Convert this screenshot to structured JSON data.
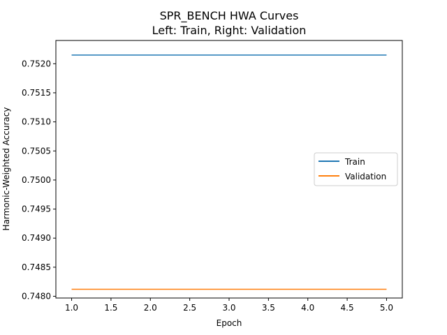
{
  "chart_data": {
    "type": "line",
    "title": "SPR_BENCH HWA Curves",
    "subtitle": "Left: Train, Right: Validation",
    "xlabel": "Epoch",
    "ylabel": "Harmonic-Weighted Accuracy",
    "xlim": [
      0.8,
      5.2
    ],
    "ylim": [
      0.74797,
      0.7524
    ],
    "x_ticks": [
      "1.0",
      "1.5",
      "2.0",
      "2.5",
      "3.0",
      "3.5",
      "4.0",
      "4.5",
      "5.0"
    ],
    "y_ticks": [
      "0.7480",
      "0.7485",
      "0.7490",
      "0.7495",
      "0.7500",
      "0.7505",
      "0.7510",
      "0.7515",
      "0.7520"
    ],
    "grid": false,
    "legend_position": "center-right",
    "x": [
      1,
      2,
      3,
      4,
      5
    ],
    "series": [
      {
        "name": "Train",
        "color": "#1f77b4",
        "values": [
          0.75215,
          0.75215,
          0.75215,
          0.75215,
          0.75215
        ]
      },
      {
        "name": "Validation",
        "color": "#ff7f0e",
        "values": [
          0.74812,
          0.74812,
          0.74812,
          0.74812,
          0.74812
        ]
      }
    ]
  }
}
